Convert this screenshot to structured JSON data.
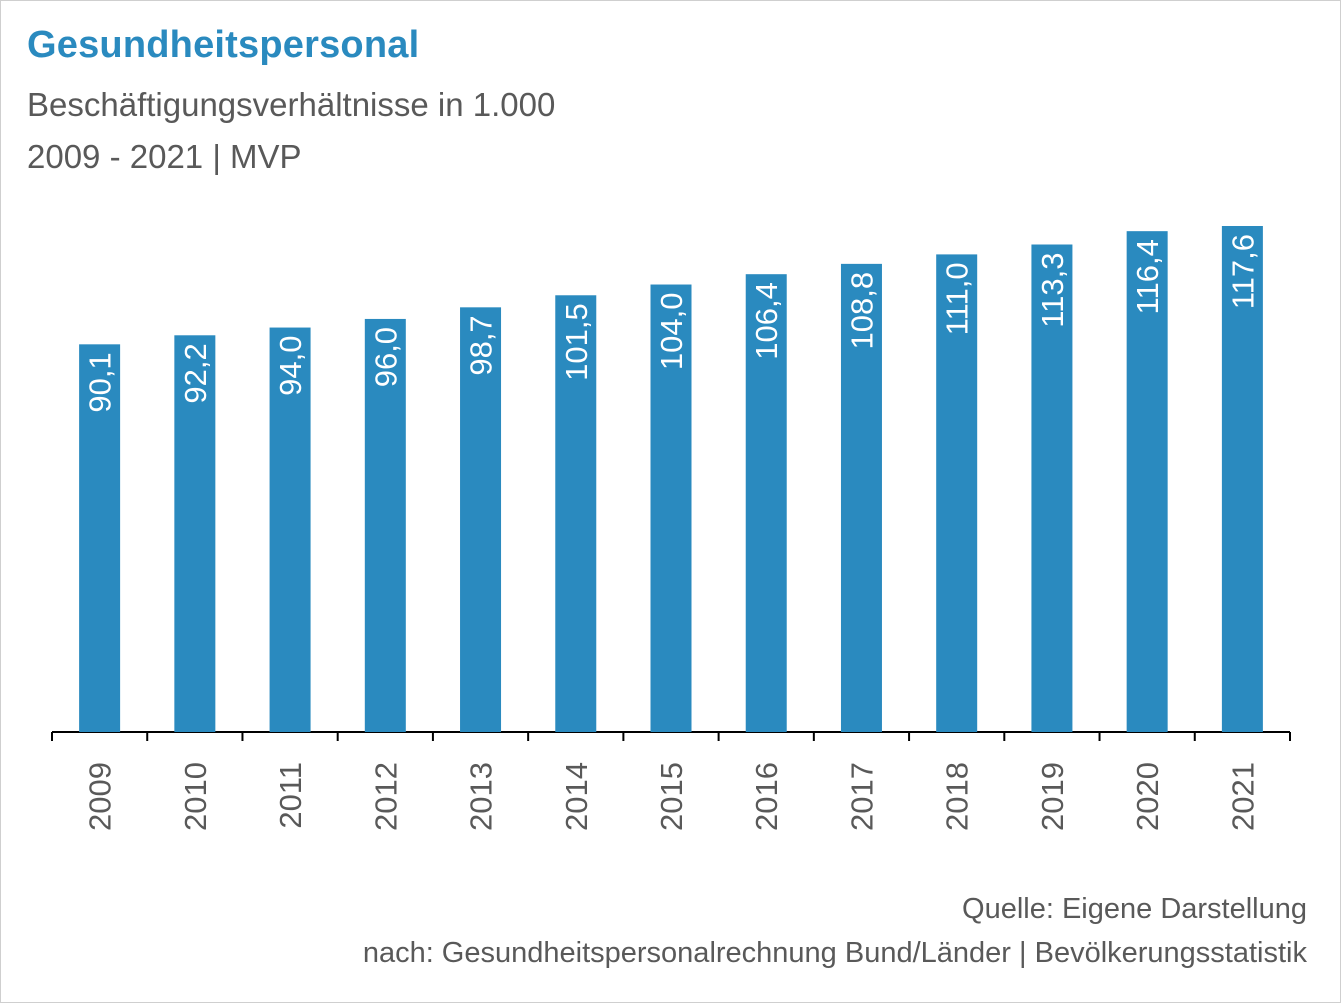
{
  "title": "Gesundheitspersonal",
  "subtitle": "Beschäftigungsverhältnisse in 1.000",
  "subtitle2": "2009 - 2021 | MVP",
  "source_line1": "Quelle: Eigene Darstellung",
  "source_line2": "nach: Gesundheitspersonalrechnung Bund/Länder | Bevölkerungsstatistik",
  "colors": {
    "bar": "#2a8abf",
    "title": "#2a8abf",
    "text": "#595959",
    "label": "#ffffff"
  },
  "chart_data": {
    "type": "bar",
    "categories": [
      "2009",
      "2010",
      "2011",
      "2012",
      "2013",
      "2014",
      "2015",
      "2016",
      "2017",
      "2018",
      "2019",
      "2020",
      "2021"
    ],
    "values": [
      90.1,
      92.2,
      94.0,
      96.0,
      98.7,
      101.5,
      104.0,
      106.4,
      108.8,
      111.0,
      113.3,
      116.4,
      117.6
    ],
    "data_labels": [
      "90,1",
      "92,2",
      "94,0",
      "96,0",
      "98,7",
      "101,5",
      "104,0",
      "106,4",
      "108,8",
      "111,0",
      "113,3",
      "116,4",
      "117,6"
    ],
    "ylim": [
      0,
      120
    ],
    "grid": false,
    "legend": "none"
  }
}
